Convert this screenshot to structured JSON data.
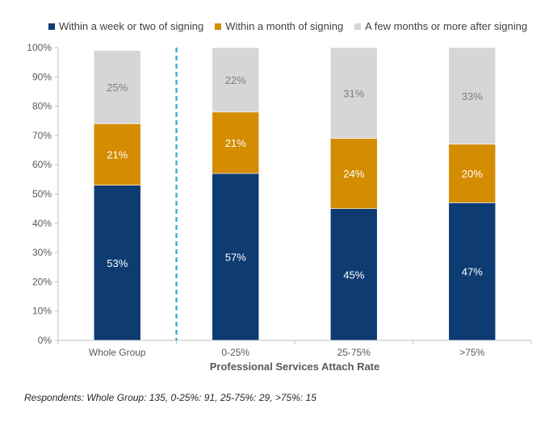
{
  "chart_data": {
    "type": "bar",
    "stacked": true,
    "categories": [
      "Whole Group",
      "0-25%",
      "25-75%",
      ">75%"
    ],
    "series": [
      {
        "name": "Within a week or two of signing",
        "values": [
          53,
          57,
          45,
          47
        ],
        "color": "#0E3B72"
      },
      {
        "name": "Within a month of signing",
        "values": [
          21,
          21,
          24,
          20
        ],
        "color": "#D48C00"
      },
      {
        "name": "A few months or more after signing",
        "values": [
          25,
          22,
          31,
          33
        ],
        "color": "#D6D6D6"
      }
    ],
    "xlabel": "Professional Services Attach Rate",
    "ylabel": "",
    "ylim": [
      0,
      100
    ],
    "ytick_labels": [
      "0%",
      "10%",
      "20%",
      "30%",
      "40%",
      "50%",
      "60%",
      "70%",
      "80%",
      "90%",
      "100%"
    ],
    "value_suffix": "%",
    "legend_position": "top",
    "separator_after_category": "Whole Group",
    "grid": false
  },
  "footnote": "Respondents: Whole Group: 135, 0-25%: 91, 25-75%: 29, >75%: 15"
}
